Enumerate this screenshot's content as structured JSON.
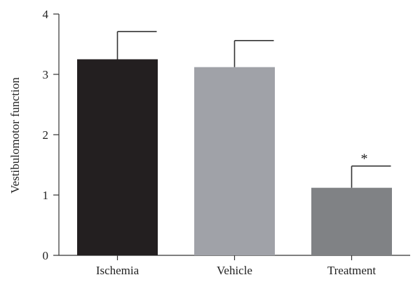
{
  "chart_data": {
    "type": "bar",
    "title": "",
    "xlabel": "",
    "ylabel": "Vestibulomotor function",
    "ylim": [
      0,
      4
    ],
    "yticks": [
      0,
      1,
      2,
      3,
      4
    ],
    "grid": false,
    "categories": [
      "Ischemia",
      "Vehicle",
      "Treatment"
    ],
    "values": [
      3.25,
      3.12,
      1.12
    ],
    "error_upper": [
      0.46,
      0.44,
      0.36
    ],
    "bar_colors": [
      "#231f20",
      "#a0a2a8",
      "#808285"
    ],
    "annotations": [
      "",
      "",
      "*"
    ]
  }
}
